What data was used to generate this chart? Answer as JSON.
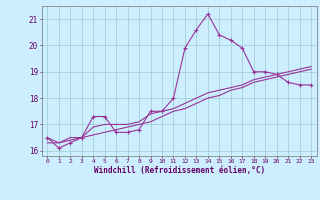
{
  "x": [
    0,
    1,
    2,
    3,
    4,
    5,
    6,
    7,
    8,
    9,
    10,
    11,
    12,
    13,
    14,
    15,
    16,
    17,
    18,
    19,
    20,
    21,
    22,
    23
  ],
  "y_main": [
    16.5,
    16.1,
    16.3,
    16.5,
    17.3,
    17.3,
    16.7,
    16.7,
    16.8,
    17.5,
    17.5,
    18.0,
    19.9,
    20.6,
    21.2,
    20.4,
    20.2,
    19.9,
    19.0,
    19.0,
    18.9,
    18.6,
    18.5,
    18.5
  ],
  "y_trend1": [
    16.3,
    16.3,
    16.4,
    16.5,
    16.6,
    16.7,
    16.8,
    16.9,
    17.0,
    17.1,
    17.3,
    17.5,
    17.6,
    17.8,
    18.0,
    18.1,
    18.3,
    18.4,
    18.6,
    18.7,
    18.8,
    18.9,
    19.0,
    19.1
  ],
  "y_trend2": [
    16.5,
    16.3,
    16.5,
    16.5,
    16.9,
    17.0,
    17.0,
    17.0,
    17.1,
    17.4,
    17.5,
    17.6,
    17.8,
    18.0,
    18.2,
    18.3,
    18.4,
    18.5,
    18.7,
    18.8,
    18.9,
    19.0,
    19.1,
    19.2
  ],
  "bg_color": "#cceeff",
  "line_color": "#993399",
  "grid_color": "#99cccc",
  "xlabel": "Windchill (Refroidissement éolien,°C)",
  "xlabel_color": "#660066",
  "tick_color": "#660066",
  "ylim": [
    15.8,
    21.5
  ],
  "xlim": [
    -0.5,
    23.5
  ],
  "yticks": [
    16,
    17,
    18,
    19,
    20,
    21
  ],
  "xticks": [
    0,
    1,
    2,
    3,
    4,
    5,
    6,
    7,
    8,
    9,
    10,
    11,
    12,
    13,
    14,
    15,
    16,
    17,
    18,
    19,
    20,
    21,
    22,
    23
  ]
}
